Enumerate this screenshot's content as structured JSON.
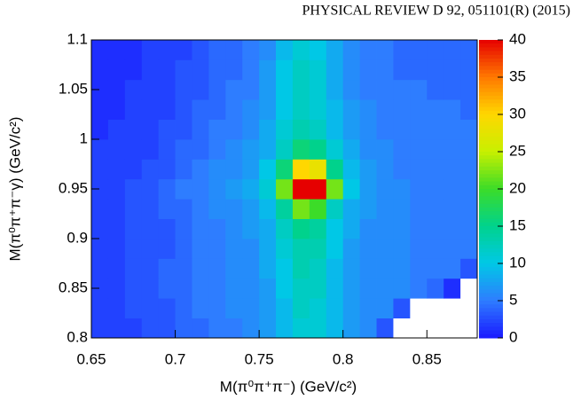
{
  "header": "PHYSICAL REVIEW D 92, 051101(R) (2015)",
  "chart_data": {
    "type": "heatmap",
    "x_label": "M(π⁰π⁺π⁻) (GeV/c²)",
    "y_label": "M(π⁰π⁺π⁻γ) (GeV/c²)",
    "xlim": [
      0.65,
      0.88
    ],
    "xticks": [
      0.65,
      0.7,
      0.75,
      0.8,
      0.85
    ],
    "ylim": [
      0.8,
      1.1
    ],
    "yticks": [
      0.8,
      0.85,
      0.9,
      0.95,
      1,
      1.05,
      1.1
    ],
    "zlim": [
      0,
      40
    ],
    "zticks": [
      0,
      5,
      10,
      15,
      20,
      25,
      30,
      35,
      40
    ],
    "colormap": [
      "#1a1aff",
      "#2e7dff",
      "#00c8e6",
      "#00d28c",
      "#3cdc28",
      "#c8f000",
      "#ffd700",
      "#ff7800",
      "#e60000"
    ],
    "xbins": [
      0.65,
      0.66,
      0.67,
      0.68,
      0.69,
      0.7,
      0.71,
      0.72,
      0.73,
      0.74,
      0.75,
      0.76,
      0.77,
      0.78,
      0.79,
      0.8,
      0.81,
      0.82,
      0.83,
      0.84,
      0.85,
      0.86,
      0.87,
      0.88
    ],
    "ybins": [
      0.8,
      0.82,
      0.84,
      0.86,
      0.88,
      0.9,
      0.92,
      0.94,
      0.96,
      0.98,
      1.0,
      1.02,
      1.04,
      1.06,
      1.08,
      1.1
    ],
    "values": [
      [
        2,
        2,
        2,
        3,
        3,
        4,
        4,
        5,
        5,
        6,
        7,
        9,
        11,
        11,
        9,
        7,
        6,
        3,
        0,
        0,
        0,
        0,
        0
      ],
      [
        2,
        2,
        3,
        3,
        3,
        4,
        5,
        5,
        6,
        6,
        7,
        9,
        12,
        11,
        9,
        7,
        6,
        6,
        3,
        0,
        0,
        0,
        0
      ],
      [
        2,
        2,
        3,
        3,
        4,
        4,
        5,
        5,
        6,
        6,
        7,
        10,
        12,
        12,
        9,
        7,
        6,
        6,
        6,
        5,
        4,
        1,
        0
      ],
      [
        2,
        2,
        3,
        3,
        4,
        4,
        5,
        5,
        6,
        6,
        8,
        10,
        13,
        12,
        9,
        7,
        6,
        6,
        6,
        5,
        5,
        5,
        3
      ],
      [
        2,
        2,
        3,
        3,
        3,
        4,
        5,
        5,
        6,
        6,
        8,
        11,
        13,
        13,
        10,
        7,
        6,
        6,
        6,
        5,
        5,
        5,
        5
      ],
      [
        2,
        2,
        3,
        3,
        3,
        4,
        5,
        5,
        6,
        7,
        8,
        12,
        15,
        14,
        10,
        8,
        6,
        6,
        6,
        5,
        5,
        5,
        5
      ],
      [
        2,
        2,
        3,
        3,
        4,
        4,
        5,
        6,
        6,
        7,
        9,
        14,
        22,
        20,
        12,
        8,
        7,
        6,
        6,
        5,
        5,
        5,
        5
      ],
      [
        2,
        2,
        3,
        3,
        4,
        5,
        5,
        6,
        7,
        8,
        11,
        22,
        40,
        40,
        22,
        10,
        7,
        6,
        6,
        5,
        5,
        5,
        5
      ],
      [
        2,
        2,
        2,
        3,
        3,
        4,
        5,
        6,
        6,
        7,
        10,
        16,
        30,
        28,
        15,
        9,
        7,
        6,
        5,
        5,
        5,
        5,
        5
      ],
      [
        2,
        2,
        2,
        2,
        3,
        4,
        4,
        5,
        6,
        7,
        8,
        12,
        16,
        15,
        11,
        8,
        6,
        6,
        5,
        5,
        5,
        5,
        5
      ],
      [
        1,
        2,
        2,
        2,
        3,
        3,
        4,
        5,
        5,
        6,
        8,
        11,
        13,
        12,
        9,
        7,
        6,
        5,
        5,
        5,
        5,
        5,
        5
      ],
      [
        1,
        1,
        2,
        2,
        2,
        3,
        4,
        4,
        5,
        6,
        7,
        10,
        12,
        11,
        9,
        7,
        6,
        5,
        5,
        5,
        5,
        5,
        4
      ],
      [
        1,
        1,
        2,
        2,
        2,
        3,
        3,
        4,
        5,
        5,
        7,
        10,
        12,
        11,
        8,
        6,
        5,
        5,
        5,
        5,
        4,
        4,
        4
      ],
      [
        1,
        1,
        1,
        2,
        2,
        3,
        3,
        4,
        4,
        5,
        7,
        10,
        12,
        11,
        8,
        6,
        5,
        5,
        4,
        4,
        4,
        4,
        4
      ],
      [
        1,
        1,
        1,
        2,
        2,
        2,
        3,
        4,
        4,
        5,
        6,
        9,
        11,
        10,
        8,
        6,
        5,
        5,
        4,
        4,
        4,
        4,
        4
      ]
    ]
  }
}
